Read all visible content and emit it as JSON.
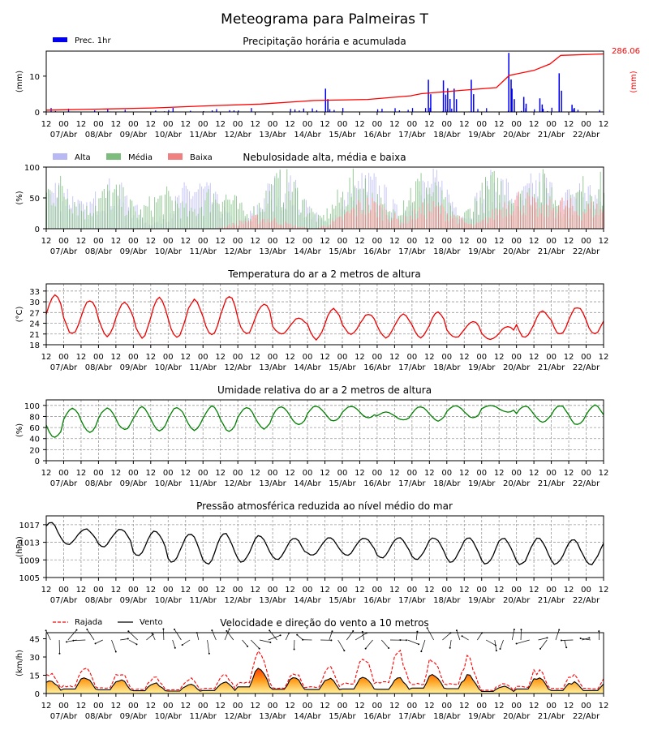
{
  "title": "Meteograma para Palmeiras T",
  "x_axis": {
    "hour_ticks": [
      "12",
      "00",
      "12",
      "00",
      "12",
      "00",
      "12",
      "00",
      "12",
      "00",
      "12",
      "00",
      "12",
      "00",
      "12",
      "00",
      "12",
      "00",
      "12",
      "00",
      "12",
      "00",
      "12",
      "00",
      "12",
      "00",
      "12",
      "00",
      "12",
      "00",
      "12",
      "00",
      "12"
    ],
    "date_labels": [
      "07/Abr",
      "08/Abr",
      "09/Abr",
      "10/Abr",
      "11/Abr",
      "12/Abr",
      "13/Abr",
      "14/Abr",
      "15/Abr",
      "16/Abr",
      "17/Abr",
      "18/Abr",
      "19/Abr",
      "20/Abr",
      "21/Abr",
      "22/Abr"
    ]
  },
  "colors": {
    "precip": "#0000ee",
    "accum": "#ff0000",
    "cloud_high": "#b8b8f4",
    "cloud_mid": "#7cbc7c",
    "cloud_low": "#f08080",
    "temperature": "#ee0000",
    "humidity": "#008000",
    "pressure": "#000000",
    "gust": "#ff0000",
    "wind": "#000000"
  },
  "chart_data": [
    {
      "type": "bar",
      "title": "Precipitação horária e acumulada",
      "ylabel": "(mm)",
      "ylabel_right": "(mm)",
      "accum_total_label": "286.06",
      "legend": [
        "Prec. 1hr"
      ],
      "legend_position": "top-left",
      "yticks": [
        "0",
        "10"
      ],
      "ylim": [
        0,
        17
      ],
      "hours_total": 384,
      "series": [
        {
          "name": "Prec. 1hr",
          "hourly_mm": [
            [
              260,
              6.5
            ],
            [
              356,
              9
            ],
            [
              370,
              8.8
            ],
            [
              374,
              6.6
            ],
            [
              380,
              6.5
            ],
            [
              396,
              9
            ],
            [
              431,
              16.5
            ],
            [
              434,
              6.5
            ],
            [
              445,
              4.2
            ],
            [
              460,
              3.8
            ],
            [
              478,
              10.8
            ],
            [
              490,
              2
            ]
          ]
        }
      ],
      "accum_curve": [
        [
          0,
          0.5
        ],
        [
          50,
          0.8
        ],
        [
          100,
          1.1
        ],
        [
          150,
          1.7
        ],
        [
          200,
          2.2
        ],
        [
          250,
          3.2
        ],
        [
          300,
          3.5
        ],
        [
          320,
          4
        ],
        [
          340,
          4.5
        ],
        [
          350,
          5.1
        ],
        [
          390,
          6.1
        ],
        [
          420,
          6.8
        ],
        [
          432,
          10.2
        ],
        [
          455,
          11.6
        ],
        [
          470,
          13.4
        ],
        [
          480,
          15.8
        ],
        [
          520,
          16.2
        ]
      ]
    },
    {
      "type": "bar",
      "title": "Nebulosidade alta, média e baixa",
      "ylabel": "(%)",
      "ylim": [
        0,
        100
      ],
      "yticks": [
        "0",
        "50",
        "100"
      ],
      "legend": [
        "Alta",
        "Média",
        "Baixa"
      ],
      "legend_position": "top-left",
      "series": [
        {
          "name": "Alta",
          "peaks_hour_pct": [
            [
              10,
              90
            ],
            [
              60,
              85
            ],
            [
              140,
              92
            ],
            [
              220,
              100
            ],
            [
              300,
              100
            ],
            [
              360,
              100
            ],
            [
              420,
              100
            ],
            [
              460,
              100
            ],
            [
              500,
              90
            ]
          ]
        },
        {
          "name": "Média",
          "peaks_hour_pct": [
            [
              10,
              95
            ],
            [
              60,
              80
            ],
            [
              110,
              70
            ],
            [
              160,
              80
            ],
            [
              220,
              100
            ],
            [
              290,
              100
            ],
            [
              350,
              100
            ],
            [
              420,
              100
            ],
            [
              460,
              100
            ],
            [
              510,
              100
            ]
          ]
        },
        {
          "name": "Baixa",
          "peaks_hour_pct": [
            [
              200,
              30
            ],
            [
              300,
              70
            ],
            [
              360,
              60
            ],
            [
              440,
              85
            ],
            [
              480,
              70
            ],
            [
              510,
              60
            ]
          ]
        }
      ]
    },
    {
      "type": "line",
      "title": "Temperatura do ar a 2 metros de altura",
      "ylabel": "(°C)",
      "ylim": [
        18,
        35
      ],
      "yticks": [
        "18",
        "21",
        "24",
        "27",
        "30",
        "33"
      ],
      "series": [
        {
          "name": "",
          "daily_min_max": [
            [
              21,
              32
            ],
            [
              21,
              30.5
            ],
            [
              20.5,
              30
            ],
            [
              20,
              31
            ],
            [
              20,
              30.5
            ],
            [
              20.5,
              31.5
            ],
            [
              21,
              29.5
            ],
            [
              21,
              25.5
            ],
            [
              19.5,
              28
            ],
            [
              21,
              26.5
            ],
            [
              20,
              26.5
            ],
            [
              20,
              27
            ],
            [
              20,
              24.5
            ],
            [
              19.5,
              23
            ],
            [
              20,
              27.5
            ],
            [
              21,
              28.5
            ]
          ]
        }
      ]
    },
    {
      "type": "line",
      "title": "Umidade relativa do ar a 2 metros de altura",
      "ylabel": "(%)",
      "ylim": [
        0,
        110
      ],
      "yticks": [
        "0",
        "20",
        "40",
        "60",
        "80",
        "100"
      ],
      "series": [
        {
          "name": "",
          "daily_min_max": [
            [
              42,
              88
            ],
            [
              52,
              95
            ],
            [
              56,
              95
            ],
            [
              53,
              97
            ],
            [
              55,
              97
            ],
            [
              53,
              98
            ],
            [
              58,
              97
            ],
            [
              65,
              98
            ],
            [
              72,
              99
            ],
            [
              78,
              98
            ],
            [
              74,
              88
            ],
            [
              72,
              98
            ],
            [
              78,
              99
            ],
            [
              88,
              100
            ],
            [
              70,
              99
            ],
            [
              65,
              100
            ]
          ]
        }
      ]
    },
    {
      "type": "line",
      "title": "Pressão atmosférica reduzida ao nível médio do mar",
      "ylabel": "(hPa)",
      "ylim": [
        1005,
        1019
      ],
      "yticks": [
        "1005",
        "1009",
        "1013",
        "1017"
      ],
      "series": [
        {
          "name": "",
          "daily_min_max": [
            [
              1012,
              1017.5
            ],
            [
              1012.5,
              1016
            ],
            [
              1012,
              1016
            ],
            [
              1010,
              1015.5
            ],
            [
              1008.5,
              1015
            ],
            [
              1008,
              1015
            ],
            [
              1008.5,
              1014.5
            ],
            [
              1009,
              1014
            ],
            [
              1010,
              1014
            ],
            [
              1010,
              1014
            ],
            [
              1009.5,
              1014
            ],
            [
              1009,
              1014
            ],
            [
              1008.5,
              1014
            ],
            [
              1008,
              1014
            ],
            [
              1008,
              1014
            ],
            [
              1008,
              1013.5
            ]
          ]
        }
      ]
    },
    {
      "type": "area",
      "title": "Velocidade e direção do vento a 10 metros",
      "ylabel": "(km/h)",
      "ylim": [
        0,
        50
      ],
      "yticks": [
        "0",
        "15",
        "30",
        "45"
      ],
      "legend": [
        "Rajada",
        "Vento"
      ],
      "legend_position": "top-left",
      "series": [
        {
          "name": "Rajada",
          "daily_max": [
            17,
            24,
            18,
            14,
            13,
            16,
            35,
            18,
            22,
            33,
            36,
            32,
            30,
            10,
            22,
            16
          ]
        },
        {
          "name": "Vento",
          "daily_max": [
            11,
            15,
            12,
            9,
            8,
            10,
            22,
            14,
            13,
            15,
            14,
            18,
            16,
            7,
            15,
            10
          ]
        }
      ]
    }
  ]
}
